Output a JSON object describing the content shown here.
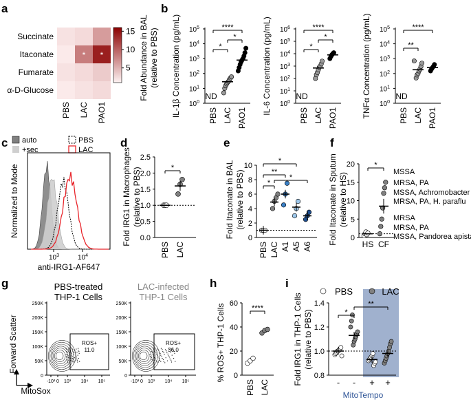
{
  "panels": {
    "a": "a",
    "b": "b",
    "c": "c",
    "d": "d",
    "e": "e",
    "f": "f",
    "g": "g",
    "h": "h",
    "i": "i"
  },
  "colors": {
    "heat_max": "#8b0000",
    "heat_min": "#fbeaea",
    "blue_dark": "#1f4f8f",
    "blue_mid": "#3a7fc4",
    "blue_light": "#9cc6ea",
    "grey_point": "#808080",
    "red_line": "#e8252b",
    "shade": "#8fa3c6",
    "mitotempo_text": "#2f5597"
  },
  "panel_a": {
    "chart_data": {
      "type": "heatmap",
      "rows": [
        "Succinate",
        "Itaconate",
        "Fumarate",
        "α-D-Glucose"
      ],
      "columns": [
        "PBS",
        "LAC",
        "PAO1"
      ],
      "values": [
        [
          1.5,
          2,
          6
        ],
        [
          1,
          8,
          14
        ],
        [
          1.5,
          2,
          3
        ],
        [
          1,
          1.5,
          2
        ]
      ],
      "significant": [
        [
          1,
          1
        ],
        [
          1,
          2
        ]
      ],
      "significance_mark": "*",
      "colorbar_ticks": [
        "15",
        "10",
        "5"
      ],
      "colorbar_range": [
        1,
        16
      ],
      "colorbar_label": "Fold Abundance in BAL (relative to PBS)"
    }
  },
  "panel_b": {
    "chart_data": [
      {
        "type": "scatter",
        "ylabel": "IL-1β Concentration (pg/mL)",
        "yscale": "log",
        "ylim": [
          1,
          100000
        ],
        "ytick_exponents": [
          "0",
          "1",
          "2",
          "3",
          "4",
          "5"
        ],
        "categories": [
          "PBS",
          "LAC",
          "PAO1"
        ],
        "nd_label": "ND",
        "points": {
          "LAC": [
            5,
            10,
            15,
            20,
            25,
            30,
            40,
            50,
            60
          ],
          "PAO1": [
            150,
            250,
            400,
            600,
            800,
            1000,
            1500,
            2500,
            5000
          ]
        },
        "means": {
          "LAC": 28,
          "PAO1": 800
        },
        "brackets": [
          {
            "from": "PBS",
            "to": "LAC",
            "label": "*"
          },
          {
            "from": "LAC",
            "to": "PAO1",
            "label": "*"
          },
          {
            "from": "PBS",
            "to": "PAO1",
            "label": "****"
          }
        ]
      },
      {
        "type": "scatter",
        "ylabel": "IL-6 Concentration (pg/mL)",
        "yscale": "log",
        "ylim": [
          1,
          1000000
        ],
        "ytick_exponents": [
          "0",
          "1",
          "2",
          "3",
          "4",
          "5",
          "6"
        ],
        "categories": [
          "PBS",
          "LAC",
          "PAO1"
        ],
        "nd_label": "ND",
        "points": {
          "LAC": [
            100,
            200,
            300,
            500,
            800,
            1000,
            1500,
            2500
          ],
          "PAO1": [
            4000,
            6000,
            8000,
            10000,
            12000
          ]
        },
        "means": {
          "LAC": 700,
          "PAO1": 8000
        },
        "brackets": [
          {
            "from": "PBS",
            "to": "LAC",
            "label": "*"
          },
          {
            "from": "LAC",
            "to": "PAO1",
            "label": "*"
          },
          {
            "from": "PBS",
            "to": "PAO1",
            "label": "****"
          }
        ]
      },
      {
        "type": "scatter",
        "ylabel": "TNFα Concentration (pg/mL)",
        "yscale": "log",
        "ylim": [
          1,
          100000
        ],
        "ytick_exponents": [
          "0",
          "1",
          "2",
          "3",
          "4",
          "5"
        ],
        "categories": [
          "PBS",
          "LAC",
          "PAO1"
        ],
        "nd_label": "ND",
        "points": {
          "LAC": [
            50,
            80,
            100,
            150,
            200,
            300,
            500,
            700
          ],
          "PAO1": [
            150,
            200,
            250,
            300,
            400
          ]
        },
        "means": {
          "LAC": 180,
          "PAO1": 250
        },
        "brackets": [
          {
            "from": "PBS",
            "to": "LAC",
            "label": "**"
          },
          {
            "from": "PBS",
            "to": "PAO1",
            "label": "****"
          }
        ]
      }
    ]
  },
  "panel_c": {
    "chart_data": {
      "type": "area",
      "ylabel": "Normalized to Mode",
      "xlabel": "anti-IRG1-AF647",
      "xscale": "log",
      "xtick_exponents": [
        "3",
        "4"
      ],
      "legend": [
        "auto",
        "+sec",
        "PBS",
        "LAC"
      ],
      "series": [
        {
          "name": "auto",
          "peak": 0.5
        },
        {
          "name": "+sec",
          "peak": 0.7
        },
        {
          "name": "PBS",
          "peak": 1.2
        },
        {
          "name": "LAC",
          "peak": 1.7
        }
      ]
    }
  },
  "panel_d": {
    "chart_data": {
      "type": "scatter",
      "ylabel": "Fold IRG1 in Macrophages (relative to PBS)",
      "ylim": [
        0,
        2.5
      ],
      "yticks": [
        "0.0",
        "0.5",
        "1.0",
        "1.5",
        "2.0",
        "2.5"
      ],
      "categories": [
        "PBS",
        "LAC"
      ],
      "points": {
        "PBS": [
          1,
          1,
          1
        ],
        "LAC": [
          1.35,
          1.65,
          1.8
        ]
      },
      "means": {
        "PBS": 1,
        "LAC": 1.6
      },
      "errors": {
        "LAC": 0.15
      },
      "reference_line": 1,
      "brackets": [
        {
          "from": "PBS",
          "to": "LAC",
          "label": "*"
        }
      ]
    }
  },
  "panel_e": {
    "chart_data": {
      "type": "scatter",
      "ylabel": "Fold Itaconate in BAL (relative to PBS)",
      "ylim": [
        0,
        10
      ],
      "yticks": [
        "0",
        "2",
        "4",
        "6",
        "8",
        "10"
      ],
      "categories": [
        "PBS",
        "LAC",
        "A1",
        "A5",
        "A6"
      ],
      "points": {
        "PBS": [
          1,
          1,
          1
        ],
        "LAC": [
          4,
          5,
          5.5,
          6
        ],
        "A1": [
          4.5,
          6,
          7.5
        ],
        "A5": [
          3,
          4,
          5
        ],
        "A6": [
          2.5,
          3,
          3.5
        ]
      },
      "means": {
        "PBS": 1,
        "LAC": 4.9,
        "A1": 6,
        "A5": 4.2,
        "A6": 3
      },
      "reference_line": 1,
      "brackets": [
        {
          "from": "PBS",
          "to": "LAC",
          "label": "*"
        },
        {
          "from": "PBS",
          "to": "A1",
          "label": "**"
        },
        {
          "from": "PBS",
          "to": "A5",
          "label": "*"
        },
        {
          "from": "LAC",
          "to": "A6",
          "label": "*"
        }
      ]
    }
  },
  "panel_f": {
    "chart_data": {
      "type": "scatter",
      "ylabel": "Fold Itaconate in Sputum (relative to HS)",
      "ylim": [
        0,
        20
      ],
      "yticks": [
        "0",
        "5",
        "10",
        "15",
        "20"
      ],
      "categories": [
        "HS",
        "CF"
      ],
      "points": {
        "HS": [
          0.5,
          1,
          1.5,
          0.8,
          1.2
        ],
        "CF": [
          1,
          3,
          5,
          8,
          12,
          13.5,
          15
        ]
      },
      "means": {
        "HS": 1,
        "CF": 8.5
      },
      "reference_line": 1,
      "brackets": [
        {
          "from": "HS",
          "to": "CF",
          "label": "*"
        }
      ],
      "annotations": [
        "MSSA",
        "MRSA, PA",
        "MSSA, Achromobacter",
        "MRSA, PA, H. paraflu",
        "MRSA",
        "MRSA, PA",
        "MSSA, Pandorea apista"
      ]
    }
  },
  "panel_g": {
    "titles": [
      {
        "line1": "PBS-treated",
        "line2": "THP-1 Cells"
      },
      {
        "line1": "LAC-infected",
        "line2": "THP-1 Cells"
      }
    ],
    "ylabel": "Forward Scatter",
    "xlabel": "MitoSox",
    "yticks": [
      "250K",
      "200K",
      "150K",
      "100K",
      "50K",
      "0"
    ],
    "xticks": [
      "-10³",
      "0",
      "10³",
      "10⁴",
      "10⁵"
    ],
    "gates": [
      {
        "label": "ROS+",
        "value": "11.0"
      },
      {
        "label": "ROS+",
        "value": "36.0"
      }
    ]
  },
  "panel_h": {
    "chart_data": {
      "type": "scatter",
      "ylabel": "% ROS+ THP-1 Cells",
      "ylim": [
        0,
        60
      ],
      "yticks": [
        "0",
        "20",
        "40",
        "60"
      ],
      "categories": [
        "PBS",
        "LAC"
      ],
      "points": {
        "PBS": [
          10,
          12,
          14
        ],
        "LAC": [
          35,
          37,
          38
        ]
      },
      "means": {
        "PBS": 12,
        "LAC": 37
      },
      "brackets": [
        {
          "from": "PBS",
          "to": "LAC",
          "label": "****"
        }
      ]
    }
  },
  "panel_i": {
    "chart_data": {
      "type": "scatter",
      "ylabel": "Fold IRG1 in THP-1 Cells (relative to PBS)",
      "ylim": [
        0.8,
        1.4
      ],
      "yticks": [
        "0.8",
        "1.0",
        "1.2",
        "1.4"
      ],
      "categories": [
        "-",
        "-",
        "+",
        "+"
      ],
      "legend": [
        "PBS",
        "LAC"
      ],
      "xlabel": "MitoTempo",
      "points": [
        [
          0.97,
          0.98,
          0.99,
          1.0,
          1.0,
          1.01,
          1.02,
          1.03,
          0.96
        ],
        [
          1.05,
          1.08,
          1.1,
          1.12,
          1.14,
          1.16,
          1.2,
          1.25,
          1.3
        ],
        [
          0.88,
          0.9,
          0.91,
          0.92,
          0.93,
          0.94,
          0.95,
          0.96,
          0.98
        ],
        [
          0.9,
          0.92,
          0.94,
          0.96,
          0.98,
          1.0,
          1.03,
          1.06,
          1.08
        ]
      ],
      "means": [
        1.0,
        1.13,
        0.93,
        0.98
      ],
      "reference_line": 1.0,
      "brackets": [
        {
          "from": 0,
          "to": 1,
          "label": "*"
        },
        {
          "from": 1,
          "to": 3,
          "label": "**"
        }
      ]
    }
  }
}
